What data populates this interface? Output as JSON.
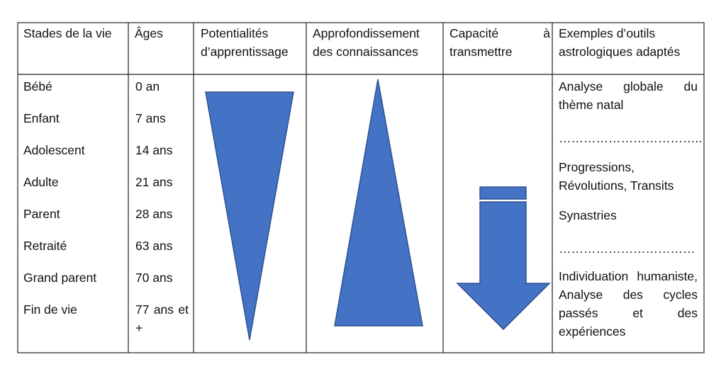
{
  "table": {
    "headers": [
      "Stades de la vie",
      "Âges",
      "Potentialités d’apprentissage",
      "Approfondissement des connaissances",
      "Capacité à transmettre",
      "Exemples d’outils astrologiques adaptés"
    ],
    "stages": [
      "Bébé",
      "Enfant",
      "Adolescent",
      "Adulte",
      "Parent",
      "Retraité",
      "Grand parent",
      "Fin de vie"
    ],
    "ages": [
      "0 an",
      "7 ans",
      "14 ans",
      "21 ans",
      "28 ans",
      "63 ans",
      "70 ans",
      "77 ans et +"
    ],
    "tools": [
      "Analyse globale du thème natal",
      "……………………………..",
      "Progressions, Révolutions, Transits",
      "Synastries",
      "……………………………",
      "Individuation humaniste, Analyse des cycles passés et des expériences"
    ]
  }
}
